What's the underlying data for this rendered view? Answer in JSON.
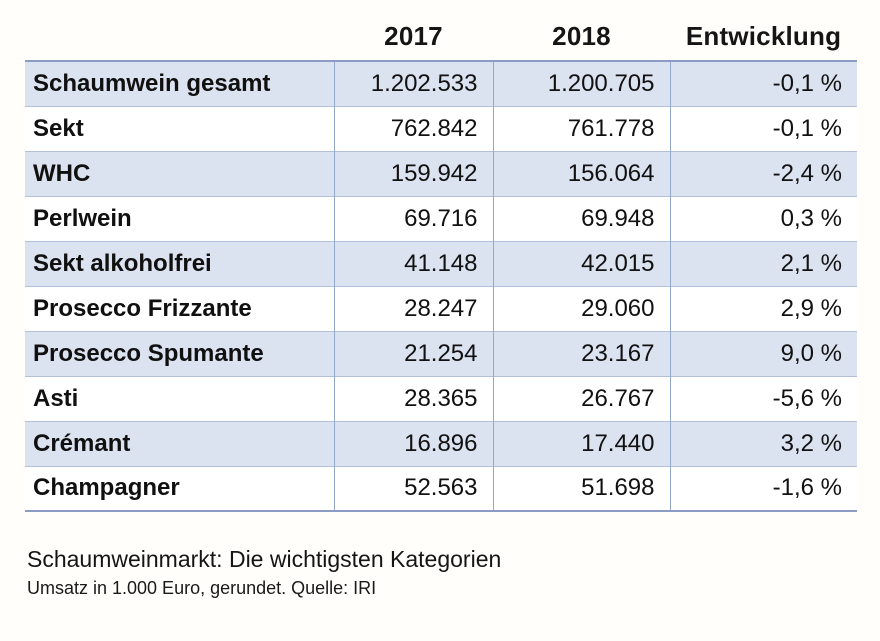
{
  "chart_data": {
    "type": "table",
    "title": "Schaumweinmarkt: Die wichtigsten Kategorien",
    "subtitle": "Umsatz in 1.000 Euro, gerundet. Quelle: IRI",
    "units": "1.000 Euro",
    "source": "IRI",
    "columns": [
      "",
      "2017",
      "2018",
      "Entwicklung"
    ],
    "rows": [
      {
        "label": "Schaumwein gesamt",
        "v2017": "1.202.533",
        "v2018": "1.200.705",
        "change": "-0,1 %"
      },
      {
        "label": "Sekt",
        "v2017": "762.842",
        "v2018": "761.778",
        "change": "-0,1 %"
      },
      {
        "label": "WHC",
        "v2017": "159.942",
        "v2018": "156.064",
        "change": "-2,4 %"
      },
      {
        "label": "Perlwein",
        "v2017": "69.716",
        "v2018": "69.948",
        "change": "0,3 %"
      },
      {
        "label": "Sekt alkoholfrei",
        "v2017": "41.148",
        "v2018": "42.015",
        "change": "2,1 %"
      },
      {
        "label": "Prosecco Frizzante",
        "v2017": "28.247",
        "v2018": "29.060",
        "change": "2,9 %"
      },
      {
        "label": "Prosecco Spumante",
        "v2017": "21.254",
        "v2018": "23.167",
        "change": "9,0 %"
      },
      {
        "label": "Asti",
        "v2017": "28.365",
        "v2018": "26.767",
        "change": "-5,6 %"
      },
      {
        "label": "Crémant",
        "v2017": "16.896",
        "v2018": "17.440",
        "change": "3,2 %"
      },
      {
        "label": "Champagner",
        "v2017": "52.563",
        "v2018": "51.698",
        "change": "-1,6 %"
      }
    ],
    "layout": {
      "shaded_rows": "odd",
      "header_alignment": "center",
      "number_alignment": "right"
    },
    "colors": {
      "row_shade": "#dbe2f0",
      "grid_vertical": "#95a7cb",
      "grid_horizontal": "#b3c0dc",
      "outer_border": "#8b9cc4",
      "text": "#111111",
      "background": "#fffefb"
    }
  }
}
